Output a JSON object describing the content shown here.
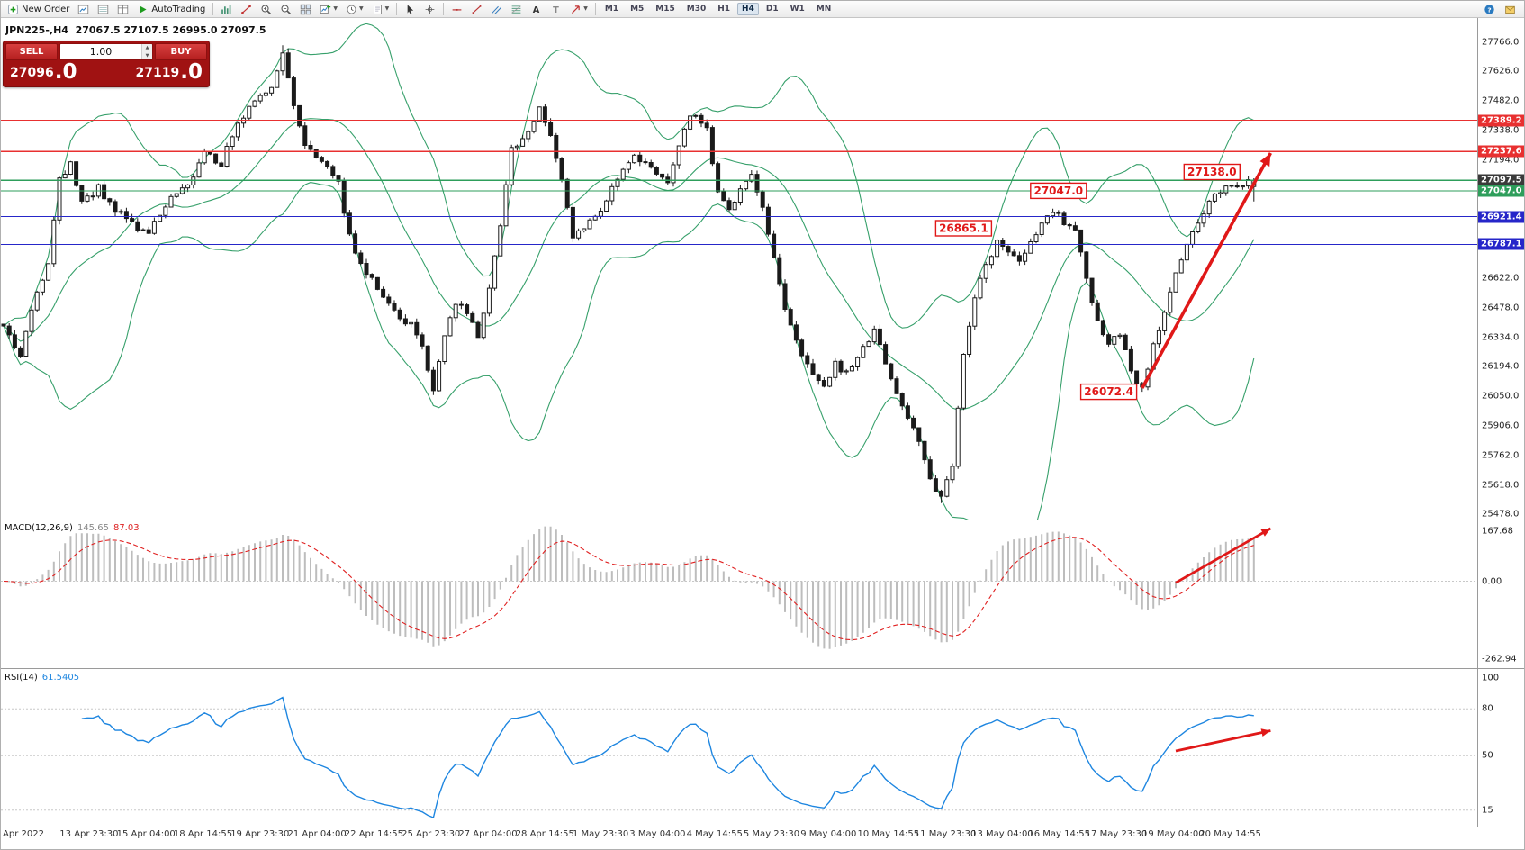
{
  "toolbar": {
    "buttons": [
      {
        "name": "new-order",
        "icon": "new-order",
        "label": "New Order"
      },
      {
        "name": "chart-window",
        "icon": "chart-window"
      },
      {
        "name": "market-watch",
        "icon": "market-watch"
      },
      {
        "name": "data-window",
        "icon": "data-window"
      },
      {
        "name": "autotrading",
        "icon": "play",
        "label": "AutoTrading"
      },
      {
        "sep": true
      },
      {
        "name": "indicator-list",
        "icon": "indicator-list"
      },
      {
        "name": "objects-list",
        "icon": "objects-list"
      },
      {
        "name": "zoom-in",
        "icon": "zoom-in"
      },
      {
        "name": "zoom-out",
        "icon": "zoom-out"
      },
      {
        "name": "tile-windows",
        "icon": "tile"
      },
      {
        "name": "new-chart",
        "icon": "new-chart",
        "caret": true
      },
      {
        "name": "periods",
        "icon": "clock",
        "caret": true
      },
      {
        "name": "templates",
        "icon": "template",
        "caret": true
      },
      {
        "sep": true
      },
      {
        "name": "cursor",
        "icon": "cursor"
      },
      {
        "name": "crosshair",
        "icon": "crosshair"
      },
      {
        "sep": true
      },
      {
        "name": "horizontal-line",
        "icon": "hline"
      },
      {
        "name": "trendline",
        "icon": "trendline"
      },
      {
        "name": "equidistant-channel",
        "icon": "channel"
      },
      {
        "name": "fibonacci-retracement",
        "icon": "fibo"
      },
      {
        "name": "text",
        "icon": "text-a"
      },
      {
        "name": "text-label",
        "icon": "text-t"
      },
      {
        "name": "arrow-objects",
        "icon": "arrow-obj",
        "caret": true
      },
      {
        "sep": true
      }
    ],
    "timeframes": [
      "M1",
      "M5",
      "M15",
      "M30",
      "H1",
      "H4",
      "D1",
      "W1",
      "MN"
    ],
    "active_timeframe": "H4",
    "right_buttons": [
      {
        "name": "help",
        "icon": "help"
      },
      {
        "name": "notifications",
        "icon": "alert"
      }
    ]
  },
  "symbol_bar": {
    "text": "JPN225-,H4  27067.5 27107.5 26995.0 27097.5"
  },
  "trade_widget": {
    "sell_label": "SELL",
    "buy_label": "BUY",
    "volume": "1.00",
    "sell_price_main": "27096",
    "sell_price_pips": ".0",
    "buy_price_main": "27119",
    "buy_price_pips": ".0"
  },
  "indicators": {
    "macd_name": "MACD(12,26,9)",
    "macd_value": "145.65",
    "macd_signal": "87.03",
    "rsi_name": "RSI(14)",
    "rsi_value": "61.5405"
  },
  "chart_data": {
    "type": "candlestick",
    "symbol": "JPN225-",
    "timeframe": "H4",
    "current_bar": {
      "open": 27067.5,
      "high": 27107.5,
      "low": 26995.0,
      "close": 27097.5
    },
    "bid": 27096.0,
    "ask": 27119.0,
    "y_axis": {
      "visible_min": 25470,
      "visible_max": 27850,
      "tick_labels": [
        "27766.0",
        "27626.0",
        "27482.0",
        "27338.0",
        "27194.0",
        "26622.0",
        "26478.0",
        "26334.0",
        "26194.0",
        "26050.0",
        "25906.0",
        "25762.0",
        "25618.0",
        "25478.0"
      ],
      "tick_values": [
        27766,
        27626,
        27482,
        27338,
        27194,
        26622,
        26478,
        26334,
        26194,
        26050,
        25906,
        25762,
        25618,
        25478
      ]
    },
    "x_axis": {
      "labels": [
        "Apr 2022",
        "13 Apr 23:30",
        "15 Apr 04:00",
        "18 Apr 14:55",
        "19 Apr 23:30",
        "21 Apr 04:00",
        "22 Apr 14:55",
        "25 Apr 23:30",
        "27 Apr 04:00",
        "28 Apr 14:55",
        "1 May 23:30",
        "3 May 04:00",
        "4 May 14:55",
        "5 May 23:30",
        "9 May 04:00",
        "10 May 14:55",
        "11 May 23:30",
        "13 May 04:00",
        "16 May 14:55",
        "17 May 23:30",
        "19 May 04:00",
        "20 May 14:55"
      ]
    },
    "candle_count": 225,
    "price_path": [
      [
        0,
        26400
      ],
      [
        3,
        26230
      ],
      [
        5,
        26480
      ],
      [
        8,
        26680
      ],
      [
        10,
        27100
      ],
      [
        12,
        27180
      ],
      [
        14,
        26980
      ],
      [
        17,
        27060
      ],
      [
        20,
        26950
      ],
      [
        23,
        26890
      ],
      [
        26,
        26840
      ],
      [
        30,
        27010
      ],
      [
        33,
        27060
      ],
      [
        36,
        27230
      ],
      [
        39,
        27180
      ],
      [
        42,
        27380
      ],
      [
        45,
        27480
      ],
      [
        48,
        27560
      ],
      [
        50,
        27720
      ],
      [
        52,
        27460
      ],
      [
        54,
        27260
      ],
      [
        57,
        27190
      ],
      [
        60,
        27090
      ],
      [
        62,
        26820
      ],
      [
        64,
        26700
      ],
      [
        67,
        26580
      ],
      [
        70,
        26460
      ],
      [
        73,
        26390
      ],
      [
        75,
        26280
      ],
      [
        77,
        26060
      ],
      [
        79,
        26350
      ],
      [
        81,
        26500
      ],
      [
        83,
        26460
      ],
      [
        85,
        26340
      ],
      [
        87,
        26580
      ],
      [
        89,
        26880
      ],
      [
        91,
        27250
      ],
      [
        94,
        27340
      ],
      [
        96,
        27440
      ],
      [
        98,
        27330
      ],
      [
        100,
        27110
      ],
      [
        102,
        26820
      ],
      [
        104,
        26860
      ],
      [
        107,
        26960
      ],
      [
        110,
        27110
      ],
      [
        113,
        27210
      ],
      [
        116,
        27160
      ],
      [
        119,
        27090
      ],
      [
        121,
        27280
      ],
      [
        123,
        27420
      ],
      [
        126,
        27360
      ],
      [
        128,
        27030
      ],
      [
        130,
        26940
      ],
      [
        132,
        27040
      ],
      [
        134,
        27140
      ],
      [
        136,
        26960
      ],
      [
        138,
        26720
      ],
      [
        140,
        26470
      ],
      [
        142,
        26310
      ],
      [
        145,
        26160
      ],
      [
        147,
        26090
      ],
      [
        149,
        26210
      ],
      [
        151,
        26160
      ],
      [
        154,
        26300
      ],
      [
        156,
        26360
      ],
      [
        158,
        26210
      ],
      [
        160,
        26060
      ],
      [
        162,
        25960
      ],
      [
        164,
        25820
      ],
      [
        166,
        25640
      ],
      [
        168,
        25560
      ],
      [
        170,
        25720
      ],
      [
        172,
        26250
      ],
      [
        174,
        26520
      ],
      [
        176,
        26690
      ],
      [
        178,
        26800
      ],
      [
        180,
        26760
      ],
      [
        182,
        26700
      ],
      [
        184,
        26790
      ],
      [
        186,
        26890
      ],
      [
        188,
        26950
      ],
      [
        190,
        26900
      ],
      [
        192,
        26850
      ],
      [
        194,
        26620
      ],
      [
        196,
        26420
      ],
      [
        198,
        26310
      ],
      [
        200,
        26360
      ],
      [
        202,
        26170
      ],
      [
        204,
        26090
      ],
      [
        206,
        26290
      ],
      [
        208,
        26440
      ],
      [
        210,
        26640
      ],
      [
        212,
        26790
      ],
      [
        214,
        26890
      ],
      [
        216,
        26990
      ],
      [
        218,
        27040
      ],
      [
        220,
        27090
      ],
      [
        222,
        27070
      ],
      [
        224,
        27097.5
      ]
    ],
    "key_points": [
      {
        "i": 50,
        "high": 27753.0
      },
      {
        "i": 168,
        "low": 25532.0
      },
      {
        "i": 204,
        "low": 26072.4
      }
    ],
    "overlays": [
      {
        "name": "bollinger-bands",
        "period": 20,
        "deviation": 2,
        "color": "#37a06b"
      }
    ],
    "horizontal_lines": [
      {
        "price": 27389.2,
        "color": "#e83030",
        "label": "27389.2"
      },
      {
        "price": 27237.6,
        "color": "#e83030",
        "label": "27237.6"
      },
      {
        "price": 27097.5,
        "color": "#2e9e5b",
        "label": "27097.5",
        "box": "#3a3a3a"
      },
      {
        "price": 27047.0,
        "color": "#2e9e5b",
        "label": "27047.0"
      },
      {
        "price": 26921.4,
        "color": "#2626c9",
        "label": "26921.4"
      },
      {
        "price": 26787.1,
        "color": "#2626c9",
        "label": "26787.1"
      }
    ],
    "price_annotations": [
      {
        "text": "27138.0",
        "i": 216.5,
        "price": 27138.0
      },
      {
        "text": "27047.0",
        "i": 189,
        "price": 27047.0
      },
      {
        "text": "26865.1",
        "i": 172,
        "price": 26865.1
      },
      {
        "text": "26072.4",
        "i": 198,
        "price": 26072.4
      }
    ],
    "trend_arrows": {
      "main": {
        "from": {
          "i": 204,
          "price": 26090
        },
        "to": {
          "i": 227,
          "price": 27230
        }
      },
      "macd": {
        "from": {
          "i": 210,
          "v": -5
        },
        "to": {
          "i": 227,
          "v": 178
        }
      },
      "rsi": {
        "from": {
          "i": 210,
          "v": 53
        },
        "to": {
          "i": 227,
          "v": 66
        }
      }
    },
    "indicator_panels": [
      {
        "name": "MACD",
        "params": [
          12,
          26,
          9
        ],
        "current_values": [
          145.65,
          87.03
        ],
        "scale_labels": [
          {
            "text": "167.68",
            "v": 167.68
          },
          {
            "text": "0.00",
            "v": 0
          },
          {
            "text": "-262.94",
            "v": -262.94
          }
        ],
        "histogram_color": "#bdbdbd",
        "signal_color": "#e02020"
      },
      {
        "name": "RSI",
        "params": [
          14
        ],
        "current_value": 61.5405,
        "scale_labels": [
          {
            "text": "100",
            "v": 100
          },
          {
            "text": "80",
            "v": 80
          },
          {
            "text": "50",
            "v": 50
          },
          {
            "text": "15",
            "v": 15
          }
        ],
        "levels": [
          80,
          50,
          15
        ],
        "color": "#1e86e0"
      }
    ]
  }
}
